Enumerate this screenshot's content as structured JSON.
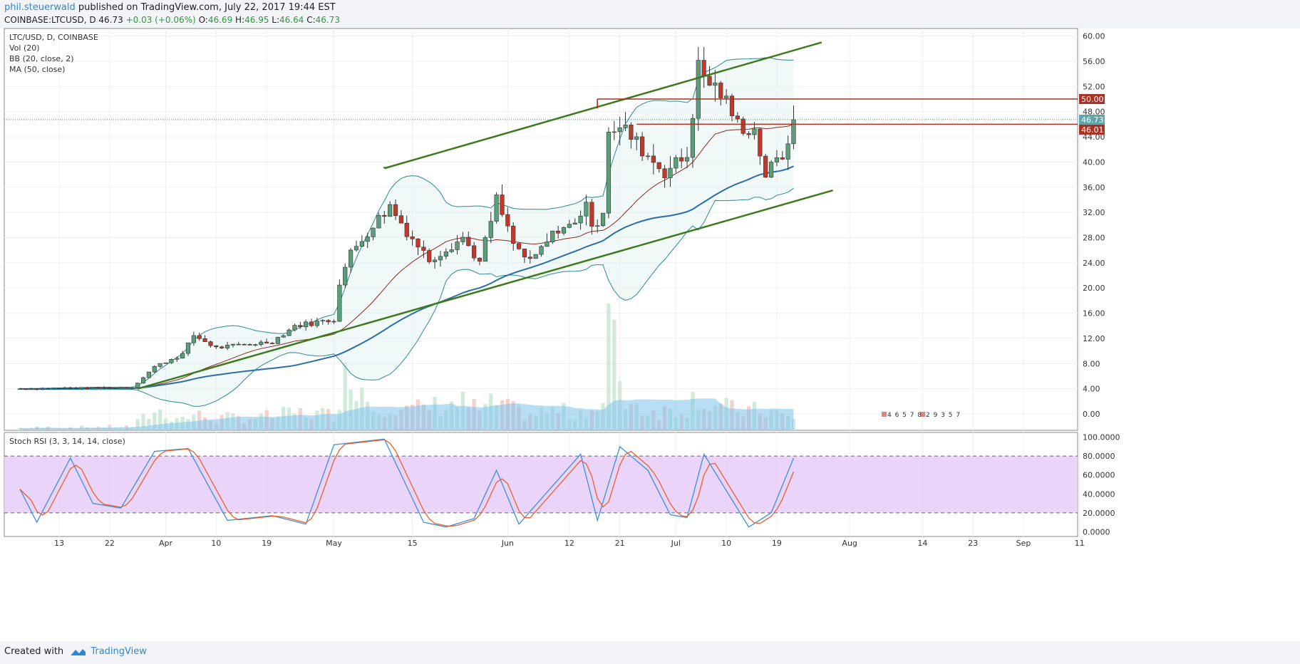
{
  "header": {
    "publisher": "phil.steuerwald",
    "published_text": "published on TradingView.com, July 22, 2017 19:44 EST",
    "symbol_line": "COINBASE:LTCUSD, D",
    "last": "46.73",
    "change": "+0.03 (+0.06%)",
    "open_label": "O:",
    "open": "46.69",
    "high_label": "H:",
    "high": "46.95",
    "low_label": "L:",
    "low": "46.64",
    "close_label": "C:",
    "close": "46.73"
  },
  "legend": [
    "LTC/USD, D, COINBASE",
    "Vol (20)",
    "BB (20, close, 2)",
    "MA (50, close)"
  ],
  "volume_labels": [
    "4 6 5 7 8",
    "2 9 3 5 7"
  ],
  "footer": {
    "created_with": "Created with",
    "brand": "TradingView"
  },
  "colors": {
    "up": "#5b9e7a",
    "down": "#c0392b",
    "channel": "#3d7a1c",
    "ma": "#2b6ea6",
    "bb": "#2a8a92",
    "stoch_k": "#3a8fd6",
    "stoch_d": "#e8602c",
    "stoch_band": "#e6ccf8",
    "resistance": "#a83225"
  },
  "chart_data": [
    {
      "type": "candlestick",
      "title": "LTC/USD, D, COINBASE",
      "y_ticks": [
        "60.00",
        "56.00",
        "52.00",
        "48.00",
        "44.00",
        "40.00",
        "36.00",
        "32.00",
        "28.00",
        "24.00",
        "20.00",
        "16.00",
        "12.00",
        "8.00",
        "4.00",
        "0.00"
      ],
      "x_ticks": [
        "13",
        "22",
        "Apr",
        "10",
        "19",
        "May",
        "15",
        "Jun",
        "12",
        "21",
        "Jul",
        "10",
        "19",
        "Aug",
        "14",
        "23",
        "Sep",
        "11"
      ],
      "ylim": [
        -2.6,
        61.2
      ],
      "price_labels": [
        {
          "value": 50.0,
          "text": "50.00"
        },
        {
          "value": 46.73,
          "text": "46.73"
        },
        {
          "value": 46.01,
          "text": "46.01"
        }
      ],
      "channel_upper": [
        {
          "date": "2017-05-10",
          "value": 39.0
        },
        {
          "date": "2017-07-27",
          "value": 59.0
        }
      ],
      "channel_lower": [
        {
          "date": "2017-03-27",
          "value": 4.0
        },
        {
          "date": "2017-07-29",
          "value": 35.5
        }
      ],
      "resistance_lines": [
        {
          "from": "2017-06-17",
          "value": 50.0
        },
        {
          "from": "2017-06-24",
          "value": 46.0
        }
      ],
      "anchors": [
        {
          "date": "2017-03-06",
          "close": 4.0,
          "vol": 0.3
        },
        {
          "date": "2017-03-26",
          "close": 4.2,
          "vol": 0.5
        },
        {
          "date": "2017-03-30",
          "close": 7.5,
          "vol": 2.5
        },
        {
          "date": "2017-04-04",
          "close": 9.5,
          "vol": 1.5
        },
        {
          "date": "2017-04-06",
          "close": 12.5,
          "vol": 2.0
        },
        {
          "date": "2017-04-10",
          "close": 10.5,
          "vol": 1.5
        },
        {
          "date": "2017-04-20",
          "close": 11.5,
          "vol": 1.8
        },
        {
          "date": "2017-04-24",
          "close": 14.0,
          "vol": 2.2
        },
        {
          "date": "2017-05-01",
          "close": 15.0,
          "vol": 2.0
        },
        {
          "date": "2017-05-02",
          "close": 21.0,
          "vol": 5.0
        },
        {
          "date": "2017-05-04",
          "close": 25.5,
          "vol": 8.0
        },
        {
          "date": "2017-05-08",
          "close": 30.0,
          "vol": 3.0
        },
        {
          "date": "2017-05-11",
          "close": 33.0,
          "vol": 3.5
        },
        {
          "date": "2017-05-14",
          "close": 29.0,
          "vol": 2.5
        },
        {
          "date": "2017-05-18",
          "close": 24.5,
          "vol": 3.0
        },
        {
          "date": "2017-05-24",
          "close": 28.0,
          "vol": 3.5
        },
        {
          "date": "2017-05-27",
          "close": 24.0,
          "vol": 2.5
        },
        {
          "date": "2017-05-30",
          "close": 34.0,
          "vol": 3.5
        },
        {
          "date": "2017-06-02",
          "close": 27.0,
          "vol": 2.5
        },
        {
          "date": "2017-06-05",
          "close": 24.0,
          "vol": 2.0
        },
        {
          "date": "2017-06-10",
          "close": 29.5,
          "vol": 2.5
        },
        {
          "date": "2017-06-13",
          "close": 30.0,
          "vol": 2.0
        },
        {
          "date": "2017-06-15",
          "close": 34.0,
          "vol": 3.0
        },
        {
          "date": "2017-06-16",
          "close": 29.0,
          "vol": 2.5
        },
        {
          "date": "2017-06-18",
          "close": 32.5,
          "vol": 3.0
        },
        {
          "date": "2017-06-19",
          "close": 45.5,
          "vol": 13.0
        },
        {
          "date": "2017-06-22",
          "close": 45.0,
          "vol": 4.0
        },
        {
          "date": "2017-06-26",
          "close": 41.0,
          "vol": 2.5
        },
        {
          "date": "2017-06-29",
          "close": 38.5,
          "vol": 2.5
        },
        {
          "date": "2017-07-03",
          "close": 41.0,
          "vol": 3.0
        },
        {
          "date": "2017-07-05",
          "close": 55.0,
          "vol": 5.0
        },
        {
          "date": "2017-07-06",
          "close": 53.5,
          "vol": 3.5
        },
        {
          "date": "2017-07-09",
          "close": 51.0,
          "vol": 3.0
        },
        {
          "date": "2017-07-12",
          "close": 46.0,
          "vol": 2.5
        },
        {
          "date": "2017-07-15",
          "close": 45.0,
          "vol": 2.5
        },
        {
          "date": "2017-07-17",
          "close": 38.0,
          "vol": 2.5
        },
        {
          "date": "2017-07-20",
          "close": 41.0,
          "vol": 2.0
        },
        {
          "date": "2017-07-22",
          "close": 46.73,
          "vol": 1.0
        }
      ],
      "stoch_k_anchors": [
        {
          "date": "2017-03-06",
          "value": 45
        },
        {
          "date": "2017-03-09",
          "value": 10
        },
        {
          "date": "2017-03-15",
          "value": 78
        },
        {
          "date": "2017-03-19",
          "value": 30
        },
        {
          "date": "2017-03-24",
          "value": 25
        },
        {
          "date": "2017-03-30",
          "value": 85
        },
        {
          "date": "2017-04-05",
          "value": 88
        },
        {
          "date": "2017-04-12",
          "value": 12
        },
        {
          "date": "2017-04-20",
          "value": 17
        },
        {
          "date": "2017-04-26",
          "value": 8
        },
        {
          "date": "2017-05-01",
          "value": 92
        },
        {
          "date": "2017-05-10",
          "value": 98
        },
        {
          "date": "2017-05-17",
          "value": 10
        },
        {
          "date": "2017-05-21",
          "value": 5
        },
        {
          "date": "2017-05-26",
          "value": 14
        },
        {
          "date": "2017-05-30",
          "value": 65
        },
        {
          "date": "2017-06-03",
          "value": 8
        },
        {
          "date": "2017-06-07",
          "value": 35
        },
        {
          "date": "2017-06-14",
          "value": 82
        },
        {
          "date": "2017-06-17",
          "value": 12
        },
        {
          "date": "2017-06-21",
          "value": 90
        },
        {
          "date": "2017-06-26",
          "value": 65
        },
        {
          "date": "2017-06-30",
          "value": 18
        },
        {
          "date": "2017-07-03",
          "value": 15
        },
        {
          "date": "2017-07-06",
          "value": 82
        },
        {
          "date": "2017-07-14",
          "value": 5
        },
        {
          "date": "2017-07-18",
          "value": 20
        },
        {
          "date": "2017-07-22",
          "value": 78
        }
      ]
    },
    {
      "type": "line",
      "title": "Stoch RSI (3, 3, 14, 14, close)",
      "y_ticks": [
        "100.0000",
        "80.0000",
        "60.0000",
        "40.0000",
        "20.0000",
        "0.0000"
      ],
      "ylim": [
        -5,
        105
      ],
      "band": [
        20,
        80
      ]
    }
  ]
}
